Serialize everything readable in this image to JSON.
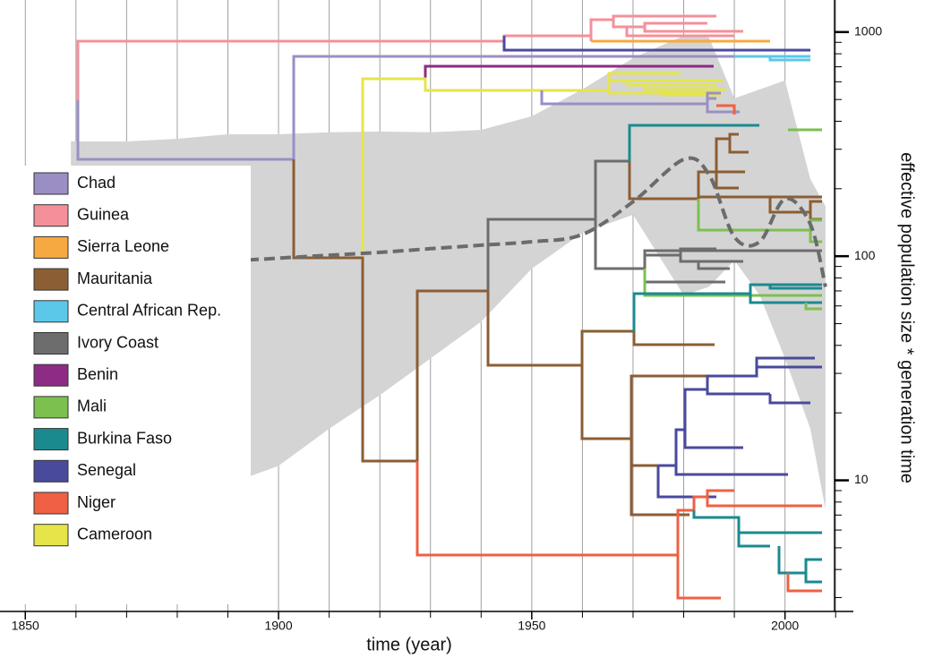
{
  "chart_data": {
    "type": "phylogeny",
    "x_label": "time (year)",
    "y2_label": "effective population size * generation time",
    "xlim": [
      1845,
      2013.5
    ],
    "xticks": [
      1850,
      1900,
      1950,
      2000
    ],
    "xminor_ticks": [
      1850,
      1860,
      1870,
      1880,
      1890,
      1900,
      1910,
      1920,
      1930,
      1940,
      1950,
      1960,
      1970,
      1980,
      1990,
      2000,
      2010
    ],
    "grid": true,
    "y2log": true,
    "y2lim": [
      2.6,
      1390
    ],
    "y2ticks": [
      10,
      100,
      1000
    ],
    "y2minor_ticks": [
      3,
      4,
      5,
      6,
      7,
      8,
      9,
      20,
      30,
      40,
      50,
      60,
      70,
      80,
      90,
      200,
      300,
      400,
      500,
      600,
      700,
      800,
      900
    ],
    "legend": "left",
    "series": [
      {
        "name": "Chad",
        "color": "#9b8ec4"
      },
      {
        "name": "Guinea",
        "color": "#f4909a"
      },
      {
        "name": "Sierra Leone",
        "color": "#f7a941"
      },
      {
        "name": "Mauritania",
        "color": "#8b5e34"
      },
      {
        "name": "Central African Rep.",
        "color": "#5bc8ea"
      },
      {
        "name": "Ivory Coast",
        "color": "#6d6d6d"
      },
      {
        "name": "Benin",
        "color": "#8e2b85"
      },
      {
        "name": "Mali",
        "color": "#7cc04f"
      },
      {
        "name": "Burkina Faso",
        "color": "#1b8a8f"
      },
      {
        "name": "Senegal",
        "color": "#4a4a9c"
      },
      {
        "name": "Niger",
        "color": "#ef6044"
      },
      {
        "name": "Cameroon",
        "color": "#e5e54a"
      }
    ],
    "skyline": {
      "color": "#d4d4d4",
      "line_color": "#6b6b6b",
      "x": [
        1859,
        1870,
        1880,
        1890,
        1900,
        1910,
        1920,
        1930,
        1940,
        1950,
        1960,
        1970,
        1980,
        1985,
        1990,
        1995,
        2000,
        2005,
        2008
      ],
      "median": [
        89,
        91,
        92,
        95,
        98,
        101,
        104,
        108,
        112,
        116,
        125,
        175,
        270,
        231,
        122,
        116,
        180,
        139,
        73
      ],
      "upper": [
        325,
        325,
        334,
        350,
        350,
        357,
        360,
        357,
        366,
        421,
        555,
        765,
        963,
        946,
        506,
        555,
        608,
        221,
        167
      ],
      "lower": [
        88,
        17,
        9.6,
        9.6,
        11.6,
        17,
        24,
        35,
        51,
        88,
        127,
        153,
        67,
        73,
        96,
        67,
        35,
        17,
        7.4
      ]
    }
  }
}
